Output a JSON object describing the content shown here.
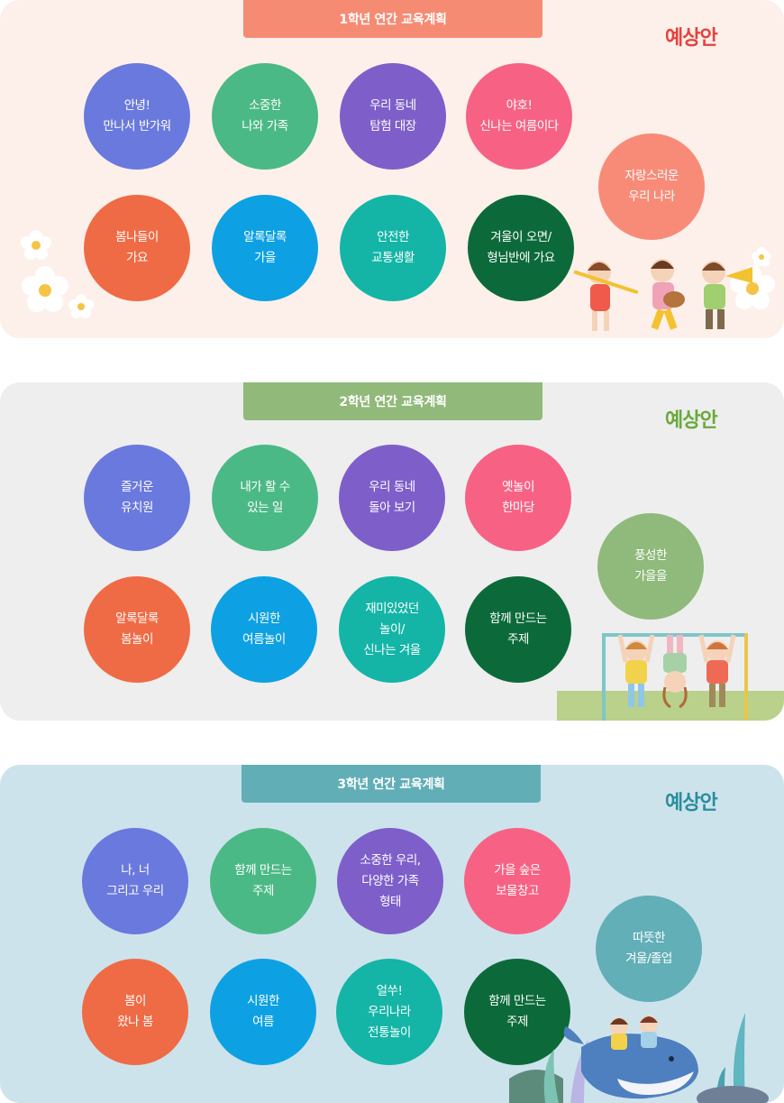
{
  "grades": [
    {
      "title": "1학년 연간 교육계획",
      "draft_label": "예상안",
      "themes": [
        "안녕!\n만나서 반가워",
        "소중한\n나와 가족",
        "우리 동네\n탐험 대장",
        "야호!\n신나는 여름이다",
        "봄나들이\n가요",
        "알록달록\n가을",
        "안전한\n교통생활",
        "겨울이 오면/\n형님반에 가요",
        "자랑스러운\n우리 나라"
      ]
    },
    {
      "title": "2학년 연간 교육계획",
      "draft_label": "예상안",
      "themes": [
        "즐거운\n유치원",
        "내가 할 수\n있는 일",
        "우리 동네\n돌아 보기",
        "옛놀이\n한마당",
        "알록달록\n봄놀이",
        "시원한\n여름놀이",
        "재미있었던\n놀이/\n신나는 겨울",
        "함께 만드는\n주제",
        "풍성한\n가을을"
      ]
    },
    {
      "title": "3학년 연간 교육계획",
      "draft_label": "예상안",
      "themes": [
        "나, 너\n그리고 우리",
        "함께 만드는\n주제",
        "소중한 우리,\n다양한 가족\n형태",
        "가을 숲은\n보물창고",
        "봄이\n왔나 봄",
        "시원한\n여름",
        "얼쑤!\n우리나라\n전통놀이",
        "함께 만드는\n주제",
        "따뜻한\n겨울/졸업"
      ]
    }
  ],
  "colors": {
    "panel1_bg": "#fdf0ea",
    "panel2_bg": "#eeeeee",
    "panel3_bg": "#cde3ec",
    "title1": "#f68b73",
    "title2": "#90b97a",
    "title3": "#62aeb7",
    "draft1": "#e8403c",
    "draft2": "#6aa93b",
    "draft3": "#2a8d9c"
  },
  "icons": [
    "daisy-flower-icon",
    "marching-band-kids-icon",
    "monkey-bars-kids-icon",
    "whale-kids-icon"
  ]
}
